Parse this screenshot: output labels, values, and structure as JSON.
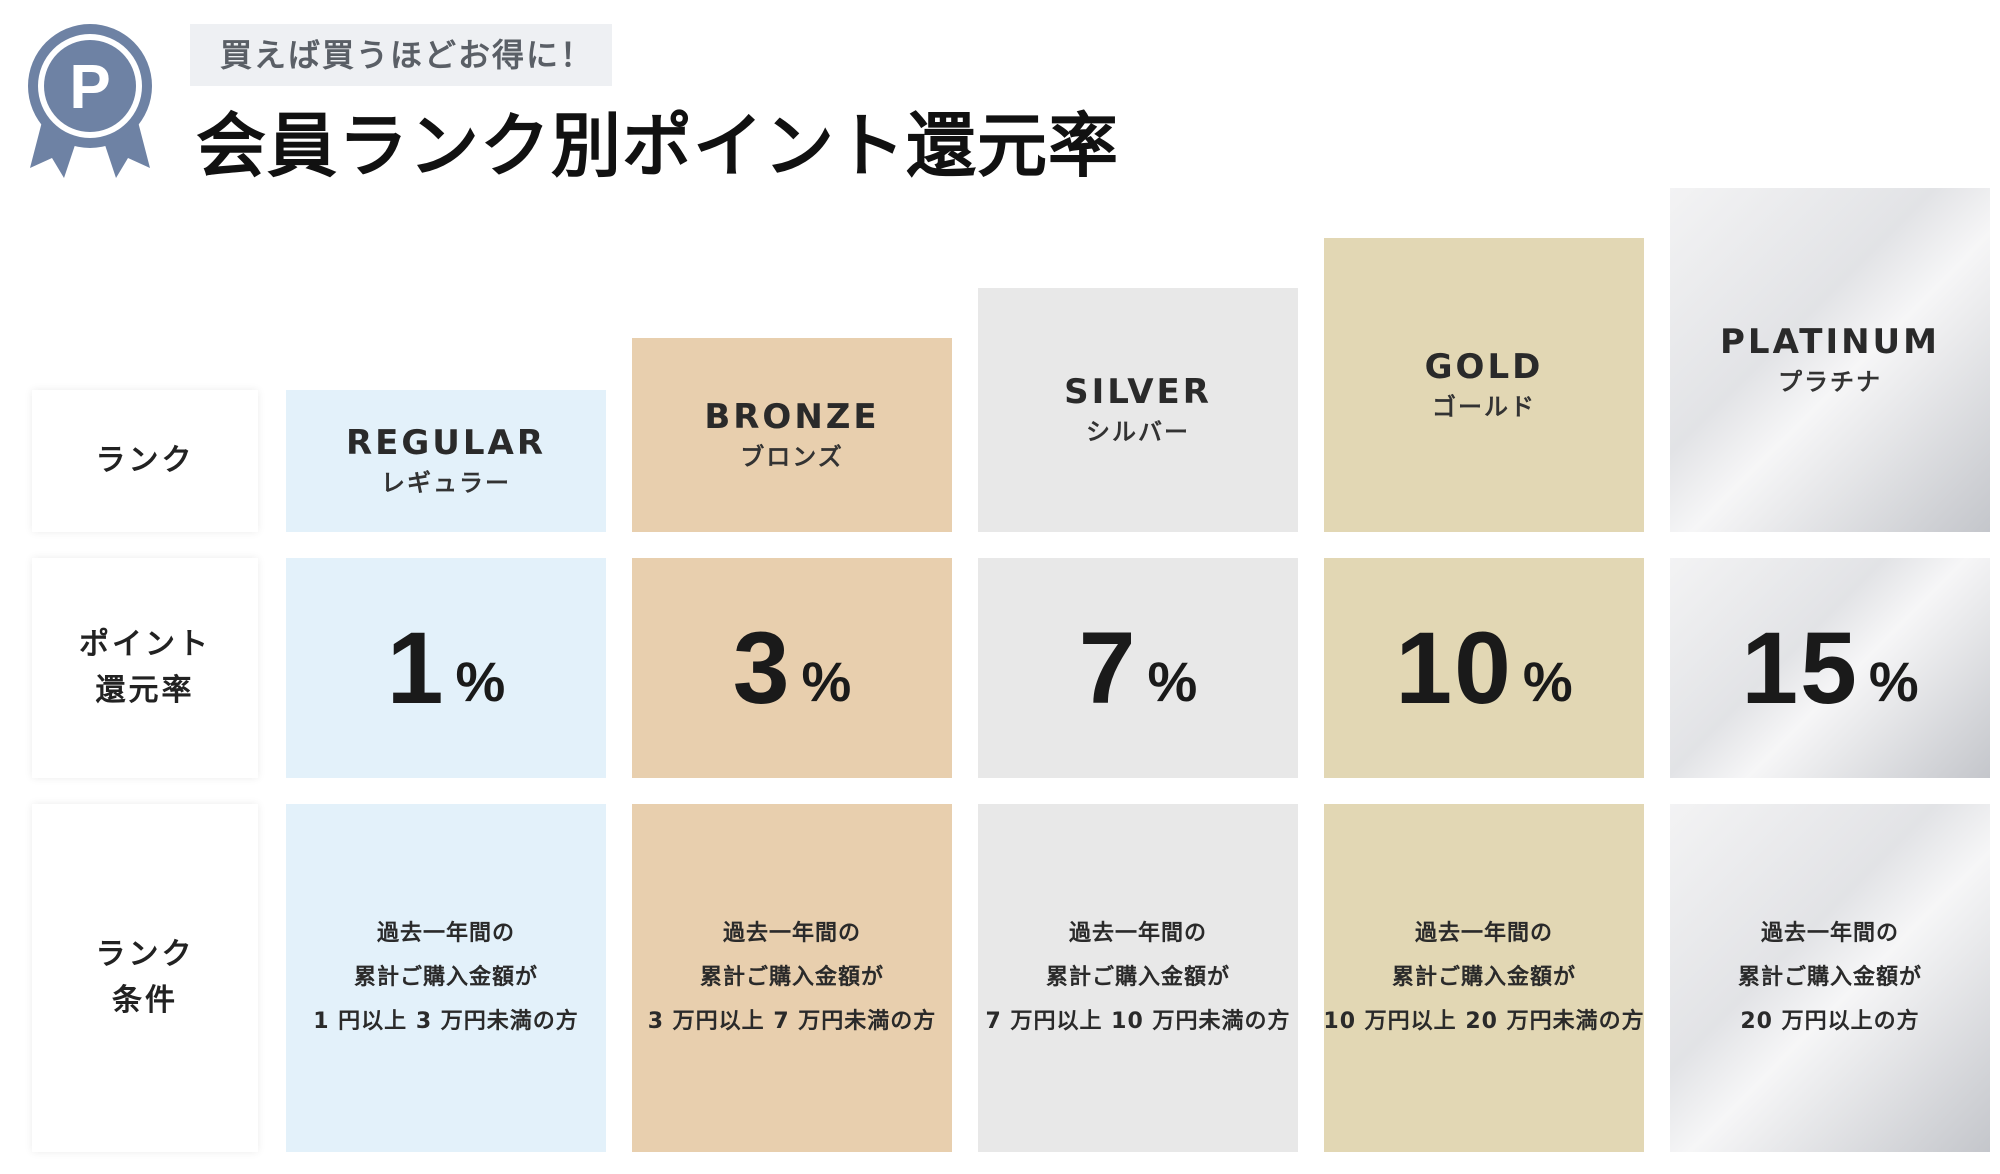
{
  "header": {
    "badge_icon": "ribbon-badge-p-icon",
    "badge_letter": "P",
    "tagline": "買えば買うほどお得に！",
    "title": "会員ランク別ポイント還元率"
  },
  "row_labels": {
    "rank": "ランク",
    "rate_line1": "ポイント",
    "rate_line2": "還元率",
    "cond_line1": "ランク",
    "cond_line2": "条件"
  },
  "ranks": [
    {
      "en": "REGULAR",
      "ja": "レギュラー",
      "rate": "1",
      "unit": "%",
      "cond": [
        "過去一年間の",
        "累計ご購入金額が",
        "1 円以上 3 万円未満の方"
      ],
      "color": "#e3f1fa"
    },
    {
      "en": "BRONZE",
      "ja": "ブロンズ",
      "rate": "3",
      "unit": "%",
      "cond": [
        "過去一年間の",
        "累計ご購入金額が",
        "3 万円以上 7 万円未満の方"
      ],
      "color": "#e8cfae"
    },
    {
      "en": "SILVER",
      "ja": "シルバー",
      "rate": "7",
      "unit": "%",
      "cond": [
        "過去一年間の",
        "累計ご購入金額が",
        "7 万円以上 10 万円未満の方"
      ],
      "color": "#e8e8e8"
    },
    {
      "en": "GOLD",
      "ja": "ゴールド",
      "rate": "10",
      "unit": "%",
      "cond": [
        "過去一年間の",
        "累計ご購入金額が",
        "10 万円以上 20 万円未満の方"
      ],
      "color": "#e2d7b4"
    },
    {
      "en": "PLATINUM",
      "ja": "プラチナ",
      "rate": "15",
      "unit": "%",
      "cond": [
        "過去一年間の",
        "累計ご購入金額が",
        "20 万円以上の方"
      ],
      "color": "#d9dadd"
    }
  ],
  "colors": {
    "badge": "#6e82a4",
    "tagline_bg": "#eef0f3",
    "tagline_text": "#5a5f66"
  }
}
